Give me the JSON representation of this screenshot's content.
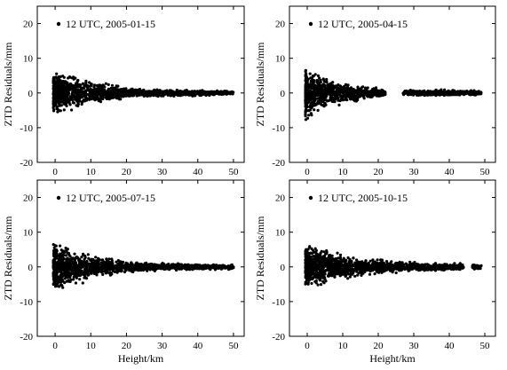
{
  "chart_data": [
    {
      "type": "scatter",
      "legend": "12 UTC, 2005-01-15",
      "xlabel": "",
      "ylabel": "ZTD Residuals/mm",
      "xlim": [
        -5,
        53
      ],
      "ylim": [
        -20,
        25
      ],
      "xticks": [
        0,
        10,
        20,
        30,
        40,
        50
      ],
      "yticks": [
        -20,
        -10,
        0,
        10,
        20
      ],
      "envelope": [
        {
          "x": 0,
          "amp": 7.5
        },
        {
          "x": 5,
          "amp": 6
        },
        {
          "x": 10,
          "amp": 4
        },
        {
          "x": 15,
          "amp": 3
        },
        {
          "x": 20,
          "amp": 1.6
        },
        {
          "x": 30,
          "amp": 1.2
        },
        {
          "x": 40,
          "amp": 1.0
        },
        {
          "x": 50,
          "amp": 0.8
        }
      ],
      "x_range": [
        -0.5,
        50
      ],
      "gaps": []
    },
    {
      "type": "scatter",
      "legend": "12 UTC, 2005-04-15",
      "xlabel": "",
      "ylabel": "ZTD Residuals/mm",
      "xlim": [
        -5,
        53
      ],
      "ylim": [
        -20,
        25
      ],
      "xticks": [
        0,
        10,
        20,
        30,
        40,
        50
      ],
      "yticks": [
        -20,
        -10,
        0,
        10,
        20
      ],
      "envelope": [
        {
          "x": 0,
          "amp": 9
        },
        {
          "x": 5,
          "amp": 5
        },
        {
          "x": 10,
          "amp": 3.5
        },
        {
          "x": 15,
          "amp": 2.5
        },
        {
          "x": 20,
          "amp": 1.5
        },
        {
          "x": 30,
          "amp": 1.0
        },
        {
          "x": 40,
          "amp": 1.0
        },
        {
          "x": 49,
          "amp": 0.8
        }
      ],
      "x_range": [
        -0.5,
        49
      ],
      "gaps": [
        [
          22,
          27
        ]
      ]
    },
    {
      "type": "scatter",
      "legend": "12 UTC, 2005-07-15",
      "xlabel": "Height/km",
      "ylabel": "ZTD Residuals/mm",
      "xlim": [
        -5,
        53
      ],
      "ylim": [
        -20,
        25
      ],
      "xticks": [
        0,
        10,
        20,
        30,
        40,
        50
      ],
      "yticks": [
        -20,
        -10,
        0,
        10,
        20
      ],
      "envelope": [
        {
          "x": 0,
          "amp": 9
        },
        {
          "x": 5,
          "amp": 6
        },
        {
          "x": 10,
          "amp": 4
        },
        {
          "x": 15,
          "amp": 3.5
        },
        {
          "x": 20,
          "amp": 1.8
        },
        {
          "x": 30,
          "amp": 1.2
        },
        {
          "x": 40,
          "amp": 1.0
        },
        {
          "x": 50,
          "amp": 0.8
        }
      ],
      "x_range": [
        -0.5,
        50
      ],
      "gaps": []
    },
    {
      "type": "scatter",
      "legend": "12 UTC, 2005-10-15",
      "xlabel": "Height/km",
      "ylabel": "ZTD Residuals/mm",
      "xlim": [
        -5,
        53
      ],
      "ylim": [
        -20,
        25
      ],
      "xticks": [
        0,
        10,
        20,
        30,
        40,
        50
      ],
      "yticks": [
        -20,
        -10,
        0,
        10,
        20
      ],
      "envelope": [
        {
          "x": 0,
          "amp": 8
        },
        {
          "x": 5,
          "amp": 6
        },
        {
          "x": 10,
          "amp": 4
        },
        {
          "x": 15,
          "amp": 3
        },
        {
          "x": 20,
          "amp": 2.5
        },
        {
          "x": 30,
          "amp": 1.5
        },
        {
          "x": 40,
          "amp": 1.3
        },
        {
          "x": 49,
          "amp": 1.0
        }
      ],
      "x_range": [
        -0.5,
        49
      ],
      "gaps": [
        [
          44,
          46.5
        ]
      ]
    }
  ]
}
